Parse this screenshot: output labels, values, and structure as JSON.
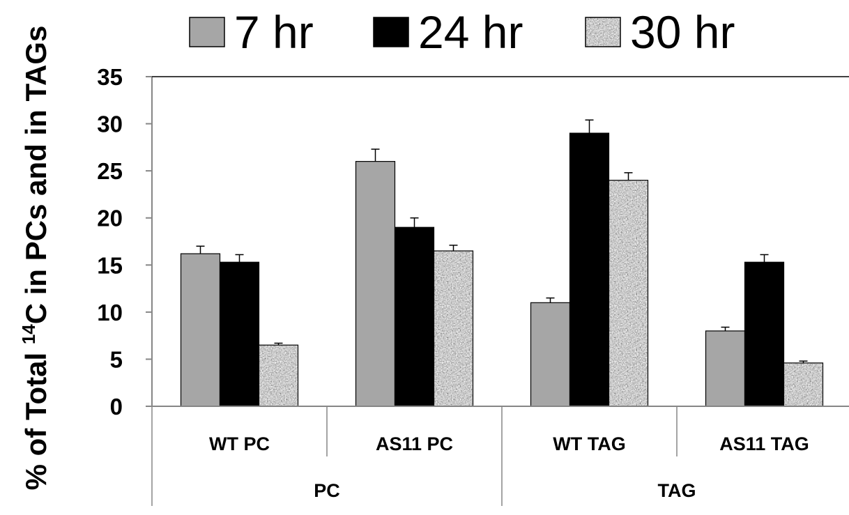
{
  "chart_data": {
    "type": "bar",
    "ylabel": {
      "prefix": "% of Total ",
      "superscript": "14",
      "suffix": "C in PCs and  in TAGs"
    },
    "ylim": [
      0,
      35
    ],
    "yticks": [
      0,
      5,
      10,
      15,
      20,
      25,
      30,
      35
    ],
    "grid": false,
    "legend_position": "top",
    "categories": [
      "WT PC",
      "AS11 PC",
      "WT TAG",
      "AS11 TAG"
    ],
    "groups": [
      {
        "label": "PC",
        "categories": [
          "WT PC",
          "AS11 PC"
        ]
      },
      {
        "label": "TAG",
        "categories": [
          "WT TAG",
          "AS11 TAG"
        ]
      }
    ],
    "series": [
      {
        "name": "7 hr",
        "color": "#a6a6a6",
        "pattern": "solid",
        "values": [
          16.2,
          26.0,
          11.0,
          8.0
        ],
        "errors": [
          0.8,
          1.3,
          0.5,
          0.4
        ]
      },
      {
        "name": "24 hr",
        "color": "#000000",
        "pattern": "solid",
        "values": [
          15.3,
          19.0,
          29.0,
          15.3
        ],
        "errors": [
          0.8,
          1.0,
          1.4,
          0.8
        ]
      },
      {
        "name": "30 hr",
        "color": "#8c8c8c",
        "pattern": "granite",
        "values": [
          6.5,
          16.5,
          24.0,
          4.6
        ],
        "errors": [
          0.2,
          0.6,
          0.8,
          0.2
        ]
      }
    ]
  }
}
